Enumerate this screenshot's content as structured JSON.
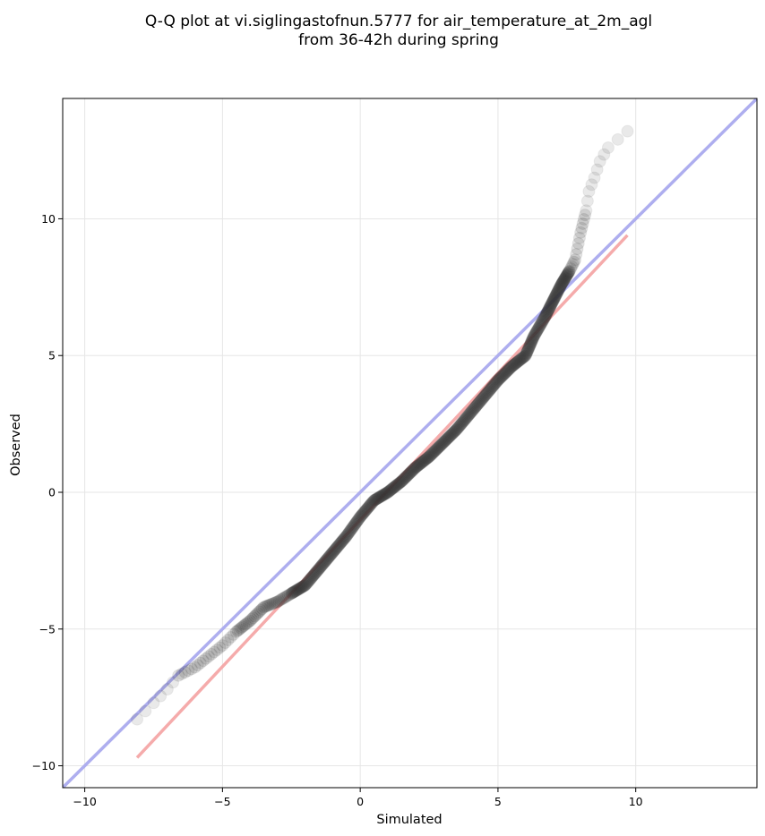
{
  "chart_data": {
    "type": "scatter",
    "title_lines": [
      "Q-Q plot at vi.siglingastofnun.5777 for air_temperature_at_2m_agl",
      "from 36-42h during spring"
    ],
    "xlabel": "Simulated",
    "ylabel": "Observed",
    "xlim": [
      -10.8,
      14.4
    ],
    "ylim": [
      -10.8,
      14.4
    ],
    "xticks": [
      -10,
      -5,
      0,
      5,
      10
    ],
    "yticks": [
      -10,
      -5,
      0,
      5,
      10
    ],
    "xtick_labels": [
      "−10",
      "−5",
      "0",
      "5",
      "10"
    ],
    "ytick_labels": [
      "−10",
      "−5",
      "0",
      "5",
      "10"
    ],
    "grid": true,
    "identity_line": {
      "from": [
        -10.8,
        -10.8
      ],
      "to": [
        14.4,
        14.4
      ],
      "color": "#aaaaee"
    },
    "fit_line": {
      "from": [
        -8.1,
        -9.7
      ],
      "to": [
        9.7,
        9.4
      ],
      "color": "#f4a6a6"
    },
    "quantile_anchors": [
      [
        -8.1,
        -8.3
      ],
      [
        -7.5,
        -7.7
      ],
      [
        -7.0,
        -7.2
      ],
      [
        -6.6,
        -6.7
      ],
      [
        -6.0,
        -6.4
      ],
      [
        -5.5,
        -6.0
      ],
      [
        -5.0,
        -5.6
      ],
      [
        -4.5,
        -5.1
      ],
      [
        -4.0,
        -4.7
      ],
      [
        -3.5,
        -4.2
      ],
      [
        -3.0,
        -4.0
      ],
      [
        -2.5,
        -3.7
      ],
      [
        -2.0,
        -3.4
      ],
      [
        -1.5,
        -2.8
      ],
      [
        -1.0,
        -2.2
      ],
      [
        -0.5,
        -1.6
      ],
      [
        0.0,
        -0.9
      ],
      [
        0.5,
        -0.3
      ],
      [
        1.0,
        0.0
      ],
      [
        1.5,
        0.4
      ],
      [
        2.0,
        0.9
      ],
      [
        2.5,
        1.3
      ],
      [
        3.0,
        1.8
      ],
      [
        3.5,
        2.3
      ],
      [
        4.0,
        2.9
      ],
      [
        4.5,
        3.5
      ],
      [
        5.0,
        4.1
      ],
      [
        5.5,
        4.6
      ],
      [
        6.0,
        5.0
      ],
      [
        6.3,
        5.7
      ],
      [
        6.7,
        6.4
      ],
      [
        7.0,
        7.0
      ],
      [
        7.3,
        7.6
      ],
      [
        7.6,
        8.1
      ],
      [
        7.8,
        8.5
      ],
      [
        8.0,
        9.5
      ],
      [
        8.2,
        10.3
      ],
      [
        8.3,
        11.0
      ],
      [
        8.5,
        11.5
      ],
      [
        8.7,
        12.1
      ],
      [
        9.0,
        12.6
      ],
      [
        9.7,
        13.2
      ]
    ]
  }
}
